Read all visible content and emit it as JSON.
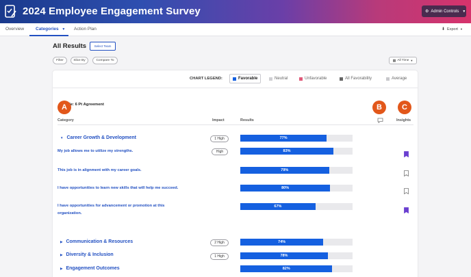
{
  "header": {
    "title": "2024 Employee Engagement Survey",
    "admin_label": "Admin Controls"
  },
  "tabs": [
    {
      "label": "Overview"
    },
    {
      "label": "Categories"
    },
    {
      "label": "Action Plan"
    }
  ],
  "export_label": "Export",
  "page": {
    "title": "All Results",
    "select_team": "Select Team",
    "filter": "Filter",
    "slice_by": "Slice By",
    "compare_to": "Compare To",
    "time_range": "All Time"
  },
  "legend": {
    "label": "CHART LEGEND:",
    "items": [
      {
        "label": "Favorable",
        "color": "#1560e0"
      },
      {
        "label": "Neutral",
        "color": "#d0d0d4"
      },
      {
        "label": "Unfavorable",
        "color": "#e05a7a"
      },
      {
        "label": "All Favorability",
        "color": "#666"
      },
      {
        "label": "Average",
        "color": "#c8c8cc"
      }
    ]
  },
  "scale_label": "ale: 6 Pt Agreement",
  "columns": {
    "category": "Category",
    "impact": "Impact",
    "results": "Results",
    "insights": "Insights"
  },
  "badges": {
    "a": "A",
    "b": "B",
    "c": "C"
  },
  "rows": [
    {
      "type": "category",
      "label": "Career Growth & Development",
      "impact": "1 High",
      "value": 77,
      "value_label": "77%",
      "expanded": true
    },
    {
      "type": "question",
      "label": "My job allows me to utilize my strengths.",
      "impact": "High",
      "value": 83,
      "value_label": "83%",
      "bookmarked": true
    },
    {
      "type": "question",
      "label": "This job is in alignment with my career goals.",
      "impact": "",
      "value": 79,
      "value_label": "79%",
      "bookmarked": false
    },
    {
      "type": "question",
      "label": "I have opportunities to learn new skills that will help me succeed.",
      "impact": "",
      "value": 80,
      "value_label": "80%",
      "bookmarked": false
    },
    {
      "type": "question",
      "label": "I have opportunities for advancement or promotion at this",
      "label2": "organization.",
      "impact": "",
      "value": 67,
      "value_label": "67%",
      "bookmarked": true
    },
    {
      "type": "category",
      "label": "Communication & Resources",
      "impact": "2 High",
      "value": 74,
      "value_label": "74%",
      "expanded": false
    },
    {
      "type": "category",
      "label": "Diversity & Inclusion",
      "impact": "1 High",
      "value": 78,
      "value_label": "78%",
      "expanded": false
    },
    {
      "type": "category",
      "label": "Engagement Outcomes",
      "impact": "",
      "value": 82,
      "value_label": "82%",
      "expanded": false
    }
  ]
}
